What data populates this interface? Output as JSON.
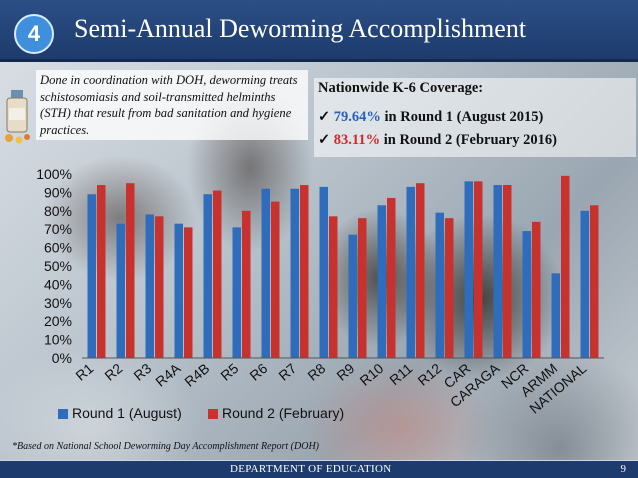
{
  "header": {
    "slide_number": "4",
    "title": "Semi-Annual Deworming Accomplishment"
  },
  "note": {
    "text": "Done in coordination with DOH, deworming treats schistosomiasis and soil-transmitted helminths (STH) that result from bad sanitation and hygiene practices."
  },
  "coverage": {
    "heading": "Nationwide K-6 Coverage:",
    "check_glyph": "✓",
    "round1_pct": "79.64%",
    "round1_text": "in Round 1 (August 2015)",
    "round2_pct": "83.11%",
    "round2_text": "in Round 2 (February 2016)"
  },
  "chart_data": {
    "type": "bar",
    "categories": [
      "R1",
      "R2",
      "R3",
      "R4A",
      "R4B",
      "R5",
      "R6",
      "R7",
      "R8",
      "R9",
      "R10",
      "R11",
      "R12",
      "CAR",
      "CARAGA",
      "NCR",
      "ARMM",
      "NATIONAL"
    ],
    "series": [
      {
        "name": "Round 1 (August)",
        "color": "#2f6cbc",
        "values": [
          89,
          73,
          78,
          73,
          89,
          71,
          92,
          92,
          93,
          67,
          83,
          93,
          79,
          96,
          94,
          69,
          46,
          80
        ]
      },
      {
        "name": "Round 2 (February)",
        "color": "#c8322e",
        "values": [
          94,
          95,
          77,
          71,
          91,
          80,
          85,
          94,
          77,
          76,
          87,
          95,
          76,
          96,
          94,
          74,
          99,
          83
        ]
      }
    ],
    "ylim": [
      0,
      100
    ],
    "yticks": [
      "0%",
      "10%",
      "20%",
      "30%",
      "40%",
      "50%",
      "60%",
      "70%",
      "80%",
      "90%",
      "100%"
    ],
    "legend_position": "bottom-left",
    "grid": false
  },
  "footnote": "*Based on National School Deworming Day Accomplishment Report (DOH)",
  "footer": {
    "department": "DEPARTMENT OF EDUCATION",
    "page": "9"
  }
}
